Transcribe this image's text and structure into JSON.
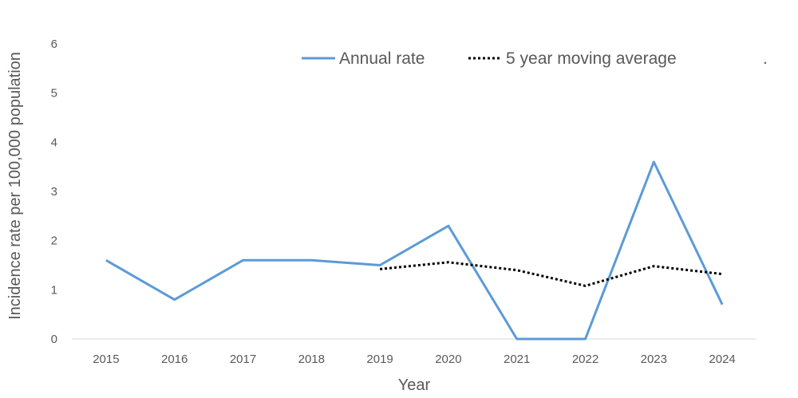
{
  "chart_data": {
    "type": "line",
    "title": "",
    "xlabel": "Year",
    "ylabel": "Incidence rate per 100,000 population",
    "categories": [
      "2015",
      "2016",
      "2017",
      "2018",
      "2019",
      "2020",
      "2021",
      "2022",
      "2023",
      "2024"
    ],
    "y_ticks": [
      "0",
      "1",
      "2",
      "3",
      "4",
      "5",
      "6"
    ],
    "ylim": [
      0,
      6
    ],
    "grid": false,
    "legend_position": "top",
    "legend_extra_text": ".",
    "series": [
      {
        "name": "Annual rate",
        "style": "solid",
        "color": "#5b9bd5",
        "values": [
          1.6,
          0.8,
          1.6,
          1.6,
          1.5,
          2.3,
          0.0,
          0.0,
          3.6,
          0.7
        ]
      },
      {
        "name": "5 year moving average",
        "style": "dotted",
        "color": "#000000",
        "values": [
          null,
          null,
          null,
          null,
          1.42,
          1.56,
          1.4,
          1.08,
          1.48,
          1.32
        ]
      }
    ]
  }
}
